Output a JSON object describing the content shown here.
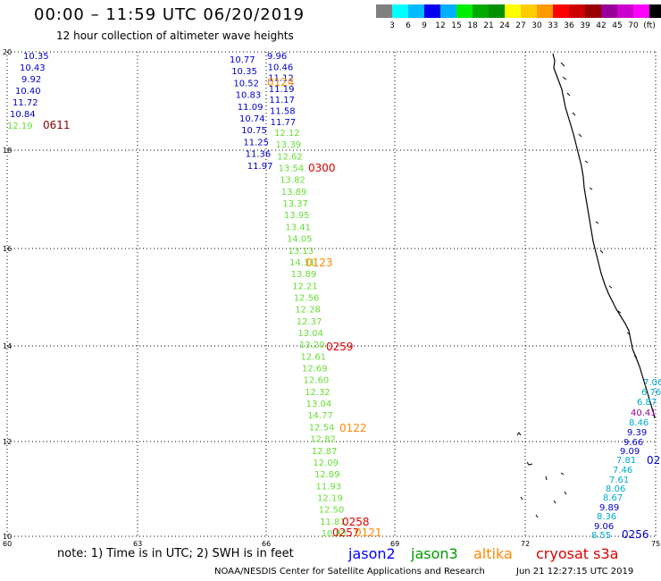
{
  "title": "00:00 – 11:59 UTC 06/20/2019",
  "subtitle": "12 hour collection of altimeter wave heights",
  "legend": {
    "colors": [
      "#808080",
      "#00ffff",
      "#00bbff",
      "#0000ee",
      "#00b0ff",
      "#00ee00",
      "#00aa00",
      "#009000",
      "#ffff00",
      "#ffcc00",
      "#ff9900",
      "#ff0000",
      "#cc0000",
      "#990000",
      "#990099",
      "#cc00cc",
      "#ff00ff",
      "#000000"
    ],
    "labels": [
      "3",
      "6",
      "9",
      "12",
      "15",
      "18",
      "21",
      "24",
      "27",
      "30",
      "33",
      "36",
      "39",
      "42",
      "45",
      "70",
      "(ft)"
    ]
  },
  "axes": {
    "lat_labels": [
      "20",
      "18",
      "16",
      "14",
      "12",
      "10"
    ],
    "lon_labels": [
      "60",
      "63",
      "66",
      "69",
      "72",
      "75"
    ]
  },
  "note": "note: 1) Time is in UTC; 2) SWH is in feet",
  "satellites": [
    {
      "name": "jason2",
      "color": "#0000ff"
    },
    {
      "name": "jason3",
      "color": "#009900"
    },
    {
      "name": "altika",
      "color": "#ff8800"
    },
    {
      "name": "cryosat s3a",
      "color": "#dd0000"
    }
  ],
  "credit": "NOAA/NESDIS Center for Satellite Applications and Research",
  "timestamp": "Jun 21 12:27:15 UTC 2019",
  "track_a": {
    "values": [
      "10.35",
      "10.43",
      "9.92",
      "10.40",
      "11.72",
      "10.84",
      "12.19"
    ],
    "colors": [
      "#0000cc",
      "#0000cc",
      "#0000cc",
      "#0000cc",
      "#0000cc",
      "#0000cc",
      "#66dd33"
    ],
    "time": "0611",
    "time_color": "#880000"
  },
  "track_b_left": {
    "values": [
      "10.77",
      "10.35",
      "10.52",
      "10.83",
      "11.09",
      "10.74",
      "10.75",
      "11.25",
      "11.36",
      "11.97"
    ],
    "color": "#0000cc"
  },
  "track_b_right": {
    "values": [
      "9.96",
      "10.46",
      "11.12",
      "11.19",
      "11.17",
      "11.58",
      "11.77"
    ],
    "color": "#0000cc"
  },
  "track_b_time": {
    "text": "0124",
    "color": "#ff8800"
  },
  "track_c": {
    "values": [
      "12.12",
      "13.39",
      "12.62",
      "13.54",
      "13.82",
      "13.89",
      "13.37",
      "13.95",
      "13.41",
      "14.05",
      "13.13",
      "14.31",
      "13.89",
      "12.21",
      "12.56",
      "12.28",
      "12.37",
      "13.04",
      "13.20",
      "12.61",
      "12.69",
      "12.60",
      "12.32",
      "13.04",
      "14.77",
      "12.54",
      "12.82",
      "12.87",
      "12.09",
      "12.89",
      "11.93",
      "12.19",
      "12.50",
      "11.81",
      "10.83"
    ],
    "color": "#66dd33"
  },
  "time_labels": [
    {
      "text": "0300",
      "color": "#dd0000"
    },
    {
      "text": "0123",
      "color": "#ff8800"
    },
    {
      "text": "0259",
      "color": "#dd0000"
    },
    {
      "text": "0122",
      "color": "#ff8800"
    },
    {
      "text": "0258",
      "color": "#dd0000"
    },
    {
      "text": "0257",
      "color": "#dd0000"
    },
    {
      "text": "0121",
      "color": "#ff8800"
    }
  ],
  "track_d": {
    "values": [
      "7.06",
      "6.76",
      "6.87",
      "40.41",
      "8.46",
      "9.39",
      "9.66",
      "9.09",
      "7.81",
      "7.46",
      "7.61",
      "8.06",
      "8.67",
      "9.89",
      "8.36",
      "9.06",
      "8.55"
    ],
    "colors": [
      "#00aacc",
      "#00aacc",
      "#00aacc",
      "#990099",
      "#00aacc",
      "#0000cc",
      "#0000cc",
      "#0000cc",
      "#00aacc",
      "#00aacc",
      "#00aacc",
      "#00aacc",
      "#00aacc",
      "#0000cc",
      "#00aacc",
      "#0000cc",
      "#00aacc"
    ]
  },
  "track_d_time": {
    "text": "0256",
    "color": "#0000cc"
  },
  "edge_label": {
    "text": "02",
    "color": "#0000cc"
  }
}
